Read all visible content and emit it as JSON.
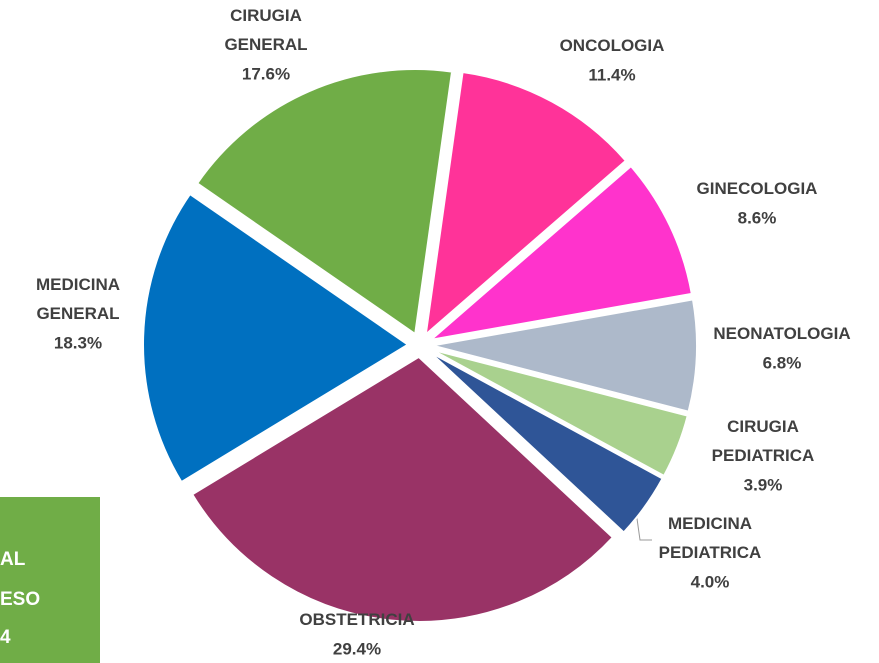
{
  "chart_data": {
    "type": "pie",
    "categories": [
      "ONCOLOGIA",
      "GINECOLOGIA",
      "NEONATOLOGIA",
      "CIRUGIA PEDIATRICA",
      "MEDICINA PEDIATRICA",
      "OBSTETRICIA",
      "MEDICINA GENERAL",
      "CIRUGIA GENERAL"
    ],
    "values": [
      11.4,
      8.6,
      6.8,
      3.9,
      4.0,
      29.4,
      18.3,
      17.6
    ],
    "value_labels": [
      "11.4%",
      "8.6%",
      "6.8%",
      "3.9%",
      "4.0%",
      "29.4%",
      "18.3%",
      "17.6%"
    ],
    "colors": [
      "#ff3399",
      "#ff33cc",
      "#adb9ca",
      "#a9d18e",
      "#2f5597",
      "#993366",
      "#0070c0",
      "#70ad47"
    ]
  },
  "box_lines": [
    "AL",
    "ESO",
    "4"
  ]
}
